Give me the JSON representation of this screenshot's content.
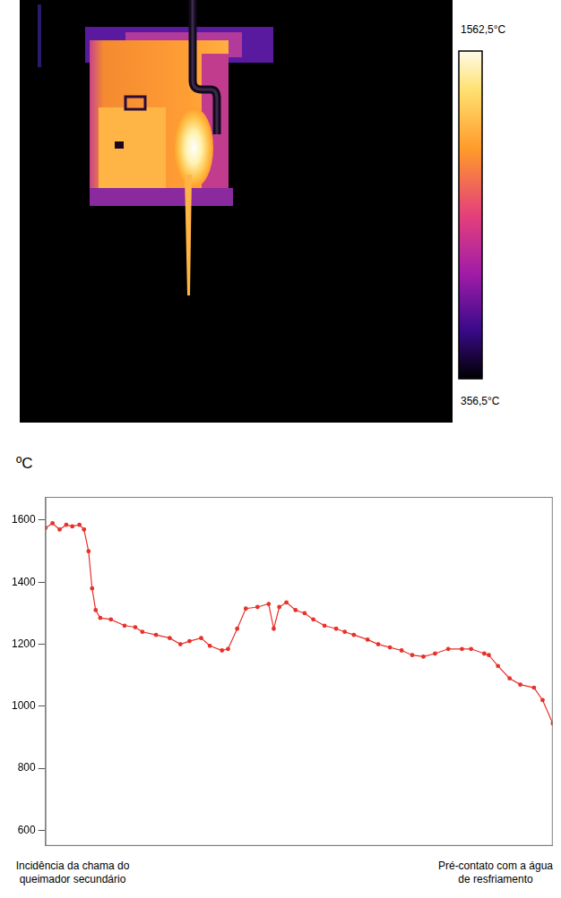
{
  "chart_data": {
    "type": "line",
    "y_label": "ºC",
    "annotations": [
      "Incidência da chama do queimador secundário",
      "Pré-contato com a água de resfriamento"
    ],
    "x": [
      0,
      1.4,
      2.8,
      4.1,
      5.3,
      6.7,
      7.6,
      8.5,
      9.2,
      9.9,
      10.8,
      12.9,
      15.6,
      17.7,
      19.1,
      21.8,
      24.5,
      26.6,
      28.4,
      30.7,
      32.4,
      34.8,
      36.0,
      37.8,
      39.5,
      41.8,
      44.0,
      45.0,
      46.1,
      47.5,
      49.3,
      51.1,
      52.8,
      55.0,
      57.3,
      59.0,
      60.8,
      63.5,
      65.6,
      67.9,
      70.2,
      72.3,
      74.5,
      76.8,
      79.4,
      82.1,
      83.9,
      86.5,
      87.4,
      89.2,
      91.5,
      93.6,
      96.3,
      98.0,
      100
    ],
    "values": [
      1575,
      1590,
      1570,
      1585,
      1580,
      1585,
      1570,
      1500,
      1380,
      1310,
      1285,
      1280,
      1260,
      1255,
      1240,
      1230,
      1220,
      1200,
      1210,
      1220,
      1195,
      1180,
      1185,
      1250,
      1315,
      1320,
      1330,
      1250,
      1320,
      1335,
      1310,
      1300,
      1280,
      1260,
      1250,
      1240,
      1230,
      1215,
      1200,
      1190,
      1180,
      1165,
      1160,
      1170,
      1185,
      1185,
      1185,
      1170,
      1165,
      1130,
      1090,
      1070,
      1060,
      1020,
      945
    ],
    "color": "#e8302a",
    "marker": "circle",
    "xlim": [
      0,
      100
    ],
    "ylim": [
      550,
      1675
    ],
    "yticks": [
      600,
      800,
      1000,
      1200,
      1400,
      1600
    ],
    "tick_labels": "y",
    "grid": false
  },
  "thermal_image": {
    "colorbar": {
      "range": [
        356.5,
        1562.5
      ],
      "ticks": [
        {
          "value": 1562.5,
          "label": "1562,5°C"
        },
        {
          "value": 356.5,
          "label": "356,5°C"
        }
      ]
    }
  }
}
